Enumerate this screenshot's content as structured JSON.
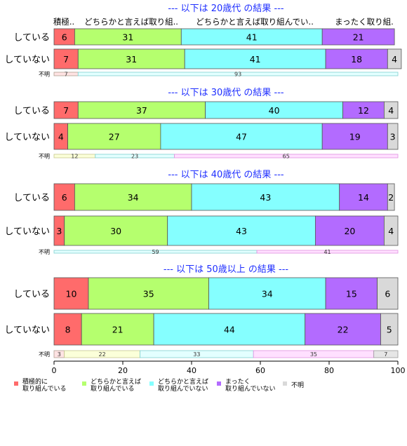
{
  "chart_data": {
    "type": "bar",
    "orientation": "horizontal-stacked",
    "xlim": [
      0,
      100
    ],
    "xticks": [
      0,
      20,
      40,
      60,
      80,
      100
    ],
    "categories_header": [
      "積極..",
      "どちらかと言えば取り組..",
      "どちらかと言えば取り組んでい..",
      "まったく取り組.",
      "不明"
    ],
    "legend": [
      {
        "label": "積極的に\n取り組んでいる",
        "color": "#ff6b6b"
      },
      {
        "label": "どちらかと言えば\n取り組んでいる",
        "color": "#b5ff6e"
      },
      {
        "label": "どちらかと言えば\n取り組んでいない",
        "color": "#85ffff"
      },
      {
        "label": "まったく\n取り組んでいない",
        "color": "#b36bff"
      },
      {
        "label": "不明",
        "color": "#d9d9d9"
      }
    ],
    "panels": [
      {
        "title": "--- 以下は 20歳代 の結果 ---",
        "rows": [
          {
            "label": "している",
            "values": [
              6,
              31,
              41,
              21,
              0
            ]
          },
          {
            "label": "していない",
            "values": [
              7,
              31,
              41,
              18,
              4
            ]
          }
        ],
        "unknown": {
          "label": "不明",
          "values": [
            7,
            0,
            93,
            0,
            0
          ]
        }
      },
      {
        "title": "--- 以下は 30歳代 の結果 ---",
        "rows": [
          {
            "label": "している",
            "values": [
              7,
              37,
              40,
              12,
              4
            ]
          },
          {
            "label": "していない",
            "values": [
              4,
              27,
              47,
              19,
              3
            ]
          }
        ],
        "unknown": {
          "label": "不明",
          "values": [
            0,
            12,
            23,
            65,
            0
          ]
        }
      },
      {
        "title": "--- 以下は 40歳代 の結果 ---",
        "rows": [
          {
            "label": "している",
            "values": [
              6,
              34,
              43,
              14,
              2
            ]
          },
          {
            "label": "していない",
            "values": [
              3,
              30,
              43,
              20,
              4
            ]
          }
        ],
        "unknown": {
          "label": "不明",
          "values": [
            0,
            0,
            59,
            41,
            0
          ]
        }
      },
      {
        "title": "--- 以下は 50歳以上 の結果 ---",
        "rows": [
          {
            "label": "している",
            "values": [
              10,
              35,
              34,
              15,
              6
            ]
          },
          {
            "label": "していない",
            "values": [
              8,
              21,
              44,
              22,
              5
            ]
          }
        ],
        "unknown": {
          "label": "不明",
          "values": [
            3,
            22,
            33,
            35,
            7
          ]
        }
      }
    ]
  }
}
